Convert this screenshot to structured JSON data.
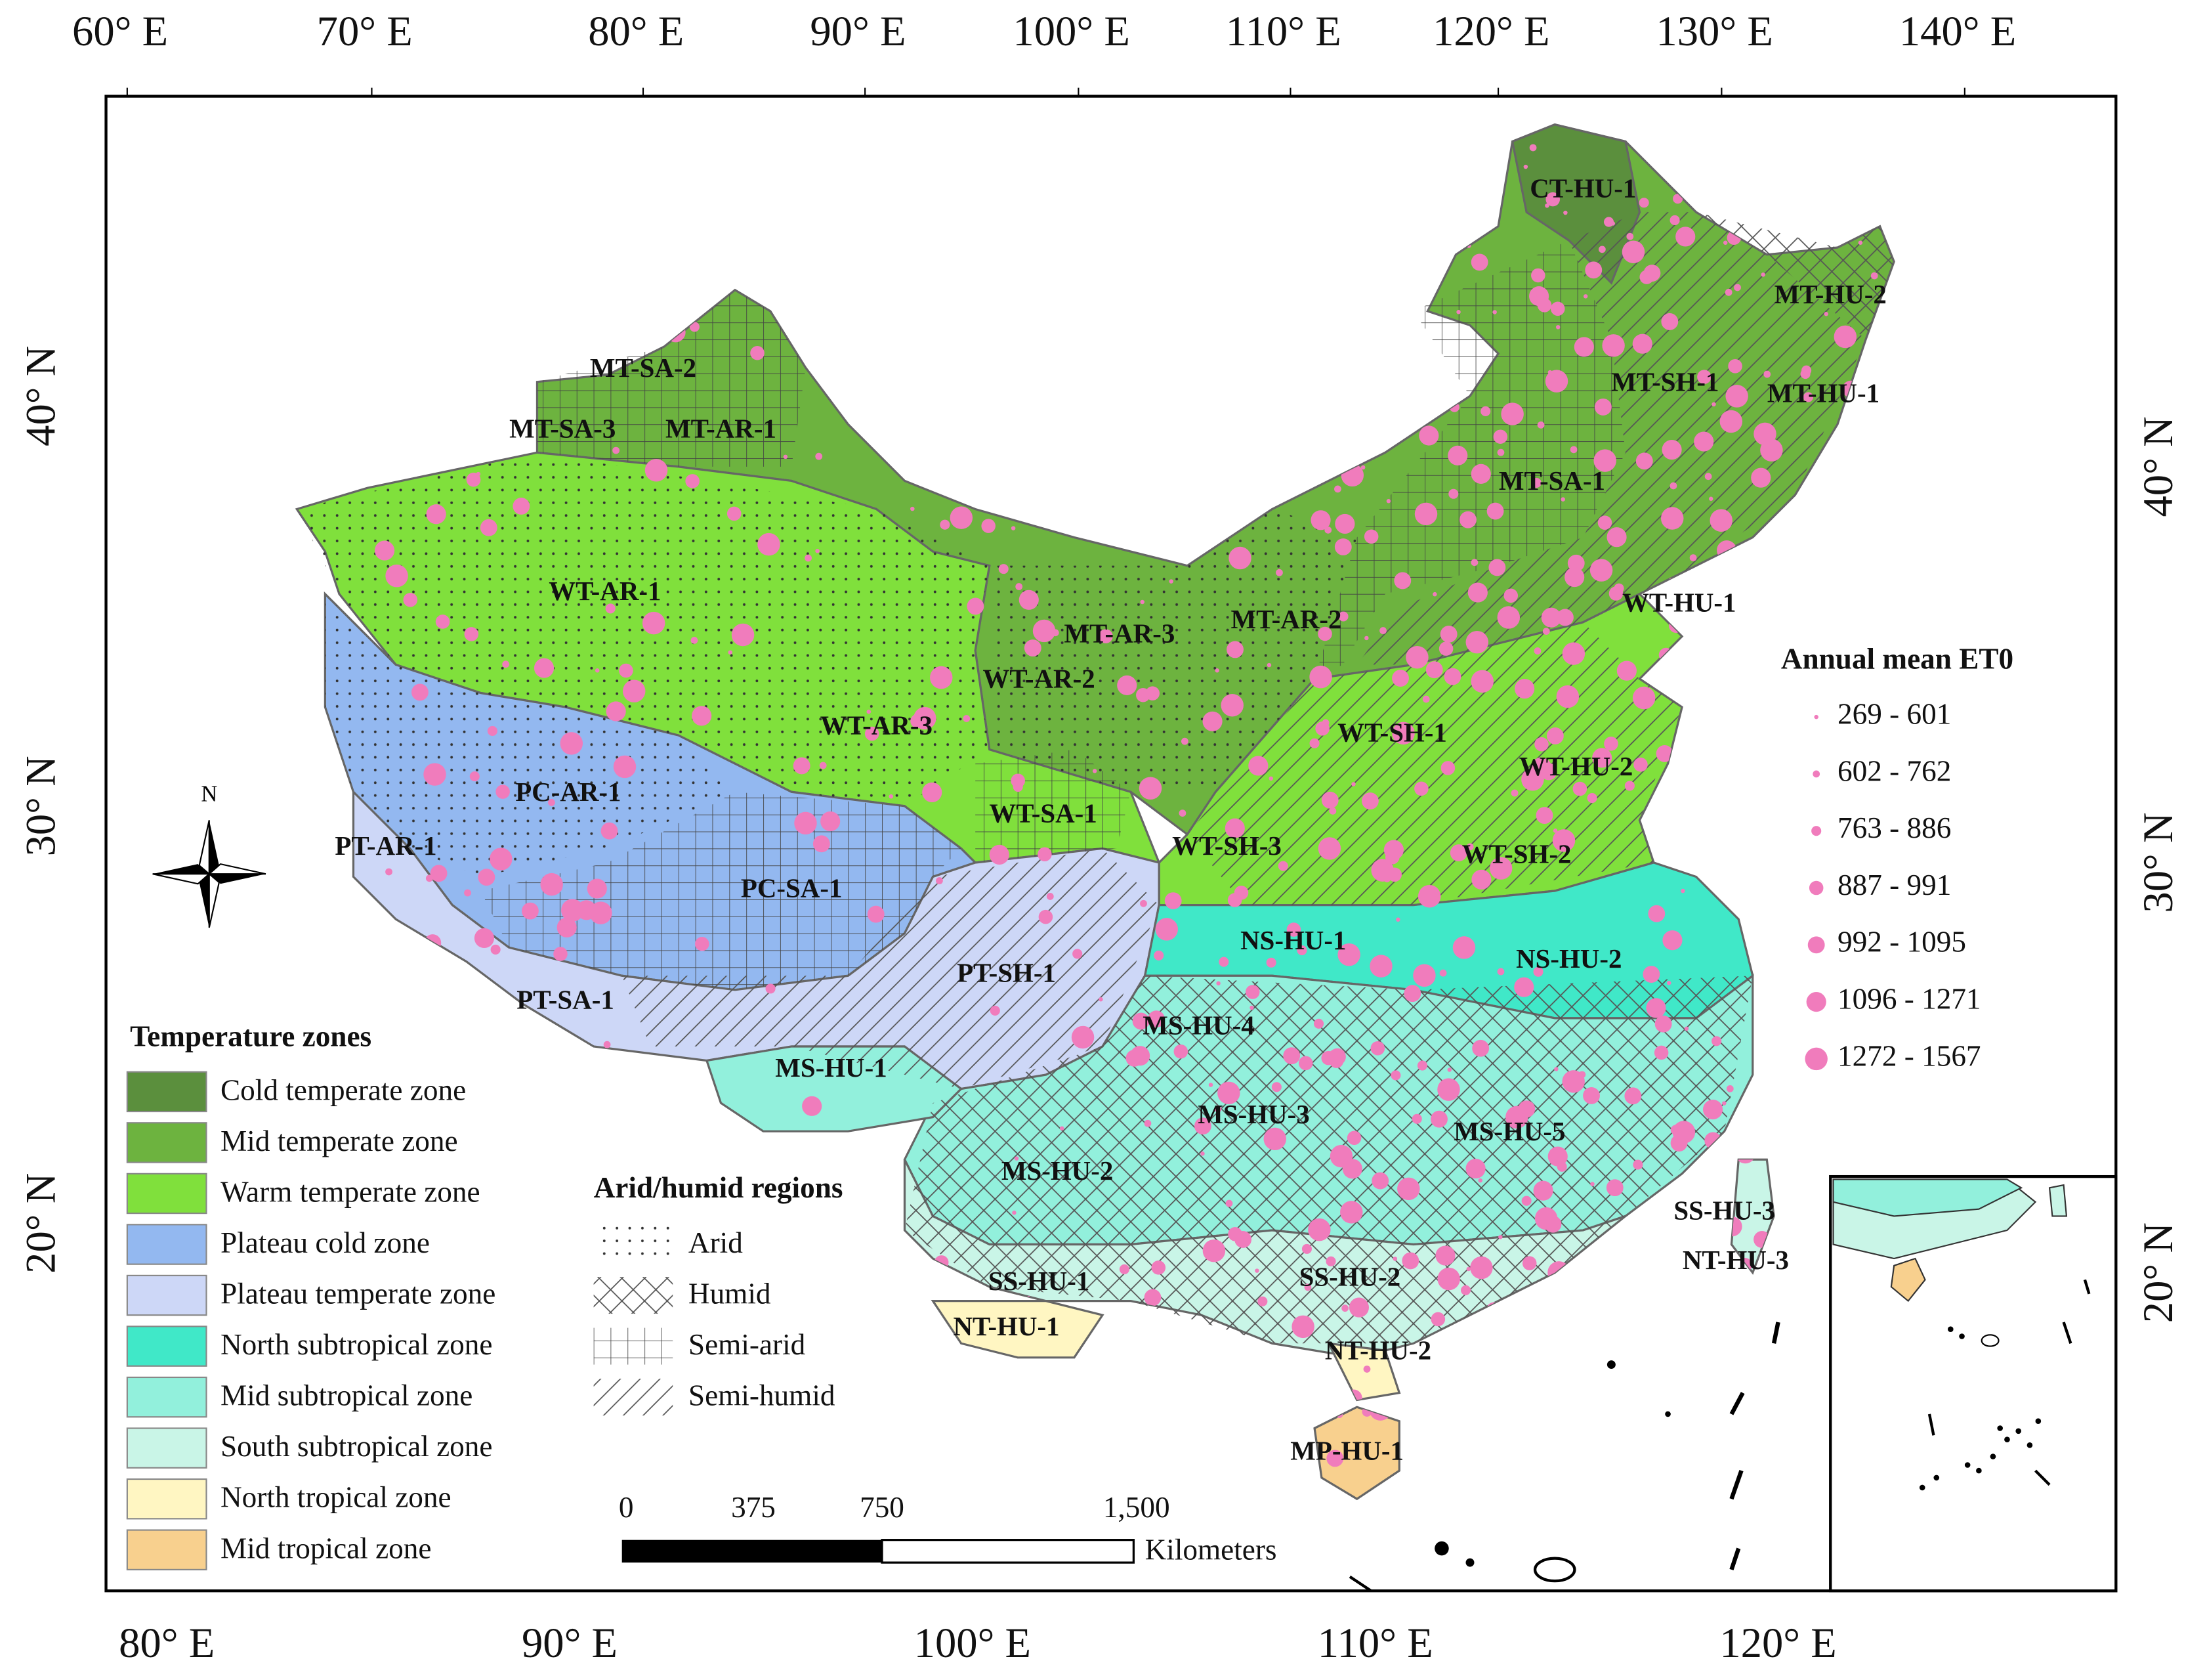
{
  "top_axis_labels": [
    "60° E",
    "70° E",
    "80° E",
    "90° E",
    "100° E",
    "110° E",
    "120° E",
    "130° E",
    "140° E"
  ],
  "bottom_axis_labels": [
    "80° E",
    "90° E",
    "100° E",
    "110° E",
    "120° E"
  ],
  "left_axis_labels": [
    "40° N",
    "30° N",
    "20° N"
  ],
  "right_axis_labels": [
    "40° N",
    "30° N",
    "20° N"
  ],
  "north_arrow": "N",
  "region_labels": [
    "CT-HU-1",
    "MT-HU-2",
    "MT-SH-1",
    "MT-HU-1",
    "MT-SA-2",
    "MT-SA-3",
    "MT-AR-1",
    "MT-SA-1",
    "WT-AR-1",
    "MT-AR-3",
    "MT-AR-2",
    "WT-HU-1",
    "WT-AR-2",
    "WT-AR-3",
    "WT-SH-1",
    "WT-HU-2",
    "PC-AR-1",
    "WT-SA-1",
    "WT-SH-3",
    "WT-SH-2",
    "PT-AR-1",
    "PC-SA-1",
    "NS-HU-1",
    "NS-HU-2",
    "PT-SH-1",
    "PT-SA-1",
    "MS-HU-4",
    "MS-HU-1",
    "MS-HU-3",
    "MS-HU-5",
    "MS-HU-2",
    "SS-HU-3",
    "NT-HU-3",
    "SS-HU-1",
    "SS-HU-2",
    "NT-HU-1",
    "NT-HU-2",
    "MP-HU-1"
  ],
  "temperature_legend": {
    "title": "Temperature zones",
    "items": [
      {
        "label": "Cold temperate zone",
        "color": "#5b8f3d"
      },
      {
        "label": "Mid temperate zone",
        "color": "#6db33f"
      },
      {
        "label": "Warm temperate zone",
        "color": "#80e03c"
      },
      {
        "label": "Plateau cold zone",
        "color": "#93b8f0"
      },
      {
        "label": "Plateau temperate zone",
        "color": "#cdd7f7"
      },
      {
        "label": "North subtropical zone",
        "color": "#40e8c8"
      },
      {
        "label": "Mid subtropical zone",
        "color": "#92f0dc"
      },
      {
        "label": "South subtropical zone",
        "color": "#c9f5e7"
      },
      {
        "label": "North tropical zone",
        "color": "#fff6c2"
      },
      {
        "label": "Mid tropical zone",
        "color": "#f8d08e"
      }
    ]
  },
  "aridity_legend": {
    "title": "Arid/humid regions",
    "items": [
      "Arid",
      "Humid",
      "Semi-arid",
      "Semi-humid"
    ]
  },
  "et0_legend": {
    "title": "Annual mean ET0",
    "color": "#f07cbc",
    "items": [
      "269 - 601",
      "602 - 762",
      "763 - 886",
      "887 - 991",
      "992 - 1095",
      "1096 - 1271",
      "1272 - 1567"
    ]
  },
  "scale_bar": {
    "ticks": [
      "0",
      "375",
      "750",
      "1,500"
    ],
    "unit": "Kilometers"
  }
}
